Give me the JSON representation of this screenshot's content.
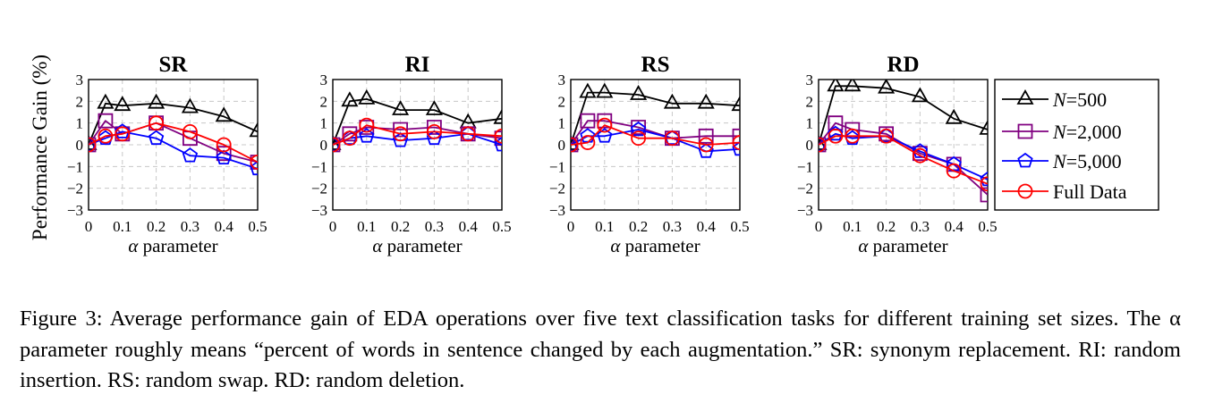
{
  "figure": {
    "y_axis_label": "Performance Gain (%)",
    "x_axis_symbol": "α",
    "x_axis_word": " parameter",
    "caption": "Figure 3:  Average performance gain of EDA operations over five text classification tasks for different training set sizes.  The α parameter roughly means “percent of words in sentence changed by each augmentation.” SR: synonym replacement. RI: random insertion. RS: random swap. RD: random deletion."
  },
  "legend": {
    "placement": "right",
    "entries": [
      {
        "prefix": "N",
        "suffix": "=500"
      },
      {
        "prefix": "N",
        "suffix": "=2,000"
      },
      {
        "prefix": "N",
        "suffix": "=5,000"
      },
      {
        "prefix": "",
        "suffix": "Full Data"
      }
    ]
  },
  "chart_data": [
    {
      "type": "line",
      "title": "SR",
      "xlabel": "α parameter",
      "ylabel": "Performance Gain (%)",
      "x": [
        0,
        0.05,
        0.1,
        0.2,
        0.3,
        0.4,
        0.5
      ],
      "xticks": [
        "0",
        "0.1",
        "0.2",
        "0.3",
        "0.4",
        "0.5"
      ],
      "yticks": [
        "3",
        "2",
        "1",
        "0",
        "−1",
        "−2",
        "−3"
      ],
      "xlim": [
        0,
        0.5
      ],
      "ylim": [
        -3,
        3
      ],
      "grid": true,
      "series": [
        {
          "name": "N=500",
          "color": "#000000",
          "marker": "triangle",
          "values": [
            0,
            1.9,
            1.8,
            1.9,
            1.7,
            1.3,
            0.6
          ]
        },
        {
          "name": "N=2,000",
          "color": "#800080",
          "marker": "square",
          "values": [
            0,
            1.1,
            0.5,
            1.0,
            0.3,
            -0.4,
            -0.8
          ]
        },
        {
          "name": "N=5,000",
          "color": "#0000ff",
          "marker": "pentagon",
          "values": [
            0,
            0.3,
            0.6,
            0.3,
            -0.5,
            -0.6,
            -1.1
          ]
        },
        {
          "name": "Full Data",
          "color": "#ff0000",
          "marker": "circle",
          "values": [
            0,
            0.4,
            0.5,
            1.0,
            0.6,
            0.0,
            -0.8
          ]
        }
      ]
    },
    {
      "type": "line",
      "title": "RI",
      "xlabel": "α parameter",
      "ylabel": "Performance Gain (%)",
      "x": [
        0,
        0.05,
        0.1,
        0.2,
        0.3,
        0.4,
        0.5
      ],
      "xticks": [
        "0",
        "0.1",
        "0.2",
        "0.3",
        "0.4",
        "0.5"
      ],
      "yticks": [
        "3",
        "2",
        "1",
        "0",
        "−1",
        "−2",
        "−3"
      ],
      "xlim": [
        0,
        0.5
      ],
      "ylim": [
        -3,
        3
      ],
      "grid": true,
      "series": [
        {
          "name": "N=500",
          "color": "#000000",
          "marker": "triangle",
          "values": [
            0,
            2.0,
            2.1,
            1.6,
            1.6,
            1.0,
            1.2
          ]
        },
        {
          "name": "N=2,000",
          "color": "#800080",
          "marker": "square",
          "values": [
            0,
            0.5,
            0.8,
            0.7,
            0.8,
            0.5,
            0.3
          ]
        },
        {
          "name": "N=5,000",
          "color": "#0000ff",
          "marker": "pentagon",
          "values": [
            0,
            0.3,
            0.4,
            0.2,
            0.3,
            0.5,
            0.0
          ]
        },
        {
          "name": "Full Data",
          "color": "#ff0000",
          "marker": "circle",
          "values": [
            0,
            0.3,
            0.9,
            0.5,
            0.6,
            0.5,
            0.4
          ]
        }
      ]
    },
    {
      "type": "line",
      "title": "RS",
      "xlabel": "α parameter",
      "ylabel": "Performance Gain (%)",
      "x": [
        0,
        0.05,
        0.1,
        0.2,
        0.3,
        0.4,
        0.5
      ],
      "xticks": [
        "0",
        "0.1",
        "0.2",
        "0.3",
        "0.4",
        "0.5"
      ],
      "yticks": [
        "3",
        "2",
        "1",
        "0",
        "−1",
        "−2",
        "−3"
      ],
      "xlim": [
        0,
        0.5
      ],
      "ylim": [
        -3,
        3
      ],
      "grid": true,
      "series": [
        {
          "name": "N=500",
          "color": "#000000",
          "marker": "triangle",
          "values": [
            0,
            2.4,
            2.4,
            2.3,
            1.9,
            1.9,
            1.8
          ]
        },
        {
          "name": "N=2,000",
          "color": "#800080",
          "marker": "square",
          "values": [
            0,
            1.1,
            1.1,
            0.8,
            0.3,
            0.4,
            0.4
          ]
        },
        {
          "name": "N=5,000",
          "color": "#0000ff",
          "marker": "pentagon",
          "values": [
            0,
            0.4,
            0.4,
            0.7,
            0.3,
            -0.3,
            -0.2
          ]
        },
        {
          "name": "Full Data",
          "color": "#ff0000",
          "marker": "circle",
          "values": [
            0,
            0.1,
            0.9,
            0.3,
            0.3,
            0.0,
            0.1
          ]
        }
      ]
    },
    {
      "type": "line",
      "title": "RD",
      "xlabel": "α parameter",
      "ylabel": "Performance Gain (%)",
      "x": [
        0,
        0.05,
        0.1,
        0.2,
        0.3,
        0.4,
        0.5
      ],
      "xticks": [
        "0",
        "0.1",
        "0.2",
        "0.3",
        "0.4",
        "0.5"
      ],
      "yticks": [
        "3",
        "2",
        "1",
        "0",
        "−1",
        "−2",
        "−3"
      ],
      "xlim": [
        0,
        0.5
      ],
      "ylim": [
        -3,
        3
      ],
      "grid": true,
      "series": [
        {
          "name": "N=500",
          "color": "#000000",
          "marker": "triangle",
          "values": [
            0,
            2.7,
            2.7,
            2.6,
            2.2,
            1.2,
            0.7
          ]
        },
        {
          "name": "N=2,000",
          "color": "#800080",
          "marker": "square",
          "values": [
            0,
            1.0,
            0.7,
            0.5,
            -0.4,
            -0.9,
            -2.3
          ]
        },
        {
          "name": "N=5,000",
          "color": "#0000ff",
          "marker": "pentagon",
          "values": [
            0,
            0.5,
            0.3,
            0.4,
            -0.3,
            -0.9,
            -1.6
          ]
        },
        {
          "name": "Full Data",
          "color": "#ff0000",
          "marker": "circle",
          "values": [
            0,
            0.4,
            0.4,
            0.4,
            -0.5,
            -1.2,
            -1.8
          ]
        }
      ]
    }
  ]
}
